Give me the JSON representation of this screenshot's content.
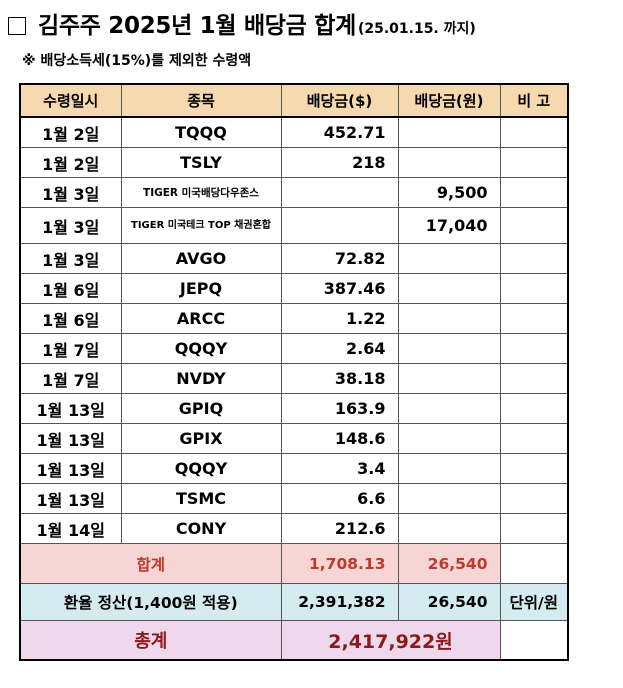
{
  "header": {
    "checkbox_symbol": "□",
    "title": "김주주 2025년 1월 배당금 합계",
    "date_note": "(25.01.15. 까지)",
    "subnote": "※ 배당소득세(15%)를 제외한 수령액"
  },
  "table": {
    "columns": [
      "수령일시",
      "종목",
      "배당금($)",
      "배당금(원)",
      "비 고"
    ],
    "rows": [
      {
        "date": "1월 2일",
        "ticker": "TQQQ",
        "usd": "452.71",
        "krw": "",
        "note": ""
      },
      {
        "date": "1월 2일",
        "ticker": "TSLY",
        "usd": "218",
        "krw": "",
        "note": ""
      },
      {
        "date": "1월 3일",
        "ticker": "TIGER 미국배당다우존스",
        "usd": "",
        "krw": "9,500",
        "note": ""
      },
      {
        "date": "1월 3일",
        "ticker": "TIGER 미국테크 TOP 채권혼합",
        "usd": "",
        "krw": "17,040",
        "note": ""
      },
      {
        "date": "1월 3일",
        "ticker": "AVGO",
        "usd": "72.82",
        "krw": "",
        "note": ""
      },
      {
        "date": "1월 6일",
        "ticker": "JEPQ",
        "usd": "387.46",
        "krw": "",
        "note": ""
      },
      {
        "date": "1월 6일",
        "ticker": "ARCC",
        "usd": "1.22",
        "krw": "",
        "note": ""
      },
      {
        "date": "1월 7일",
        "ticker": "QQQY",
        "usd": "2.64",
        "krw": "",
        "note": ""
      },
      {
        "date": "1월 7일",
        "ticker": "NVDY",
        "usd": "38.18",
        "krw": "",
        "note": ""
      },
      {
        "date": "1월 13일",
        "ticker": "GPIQ",
        "usd": "163.9",
        "krw": "",
        "note": ""
      },
      {
        "date": "1월 13일",
        "ticker": "GPIX",
        "usd": "148.6",
        "krw": "",
        "note": ""
      },
      {
        "date": "1월 13일",
        "ticker": "QQQY",
        "usd": "3.4",
        "krw": "",
        "note": ""
      },
      {
        "date": "1월 13일",
        "ticker": "TSMC",
        "usd": "6.6",
        "krw": "",
        "note": ""
      },
      {
        "date": "1월 14일",
        "ticker": "CONY",
        "usd": "212.6",
        "krw": "",
        "note": ""
      }
    ],
    "sum": {
      "label": "합계",
      "usd": "1,708.13",
      "krw": "26,540",
      "note": ""
    },
    "fx": {
      "label": "환율 정산(1,400원 적용)",
      "usd": "2,391,382",
      "krw": "26,540",
      "note": "단위/원"
    },
    "total": {
      "label": "총계",
      "value": "2,417,922원",
      "note": ""
    }
  },
  "colors": {
    "header_bg": "#f6d9ae",
    "sum_bg": "#f7d5d5",
    "sum_text": "#c0392b",
    "fx_bg": "#d4ecf0",
    "total_bg": "#f0d8ec",
    "total_text": "#8b1a1a"
  }
}
